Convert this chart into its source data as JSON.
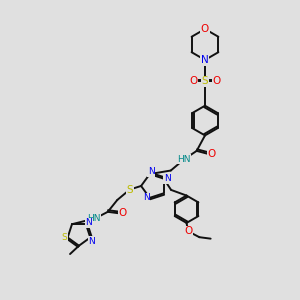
{
  "bg_color": "#e0e0e0",
  "atom_colors": {
    "C": "#000000",
    "N": "#0000ee",
    "O": "#ee0000",
    "S": "#bbbb00",
    "H": "#008888"
  },
  "bond_color": "#111111",
  "bond_width": 1.4,
  "font_size": 6.5
}
